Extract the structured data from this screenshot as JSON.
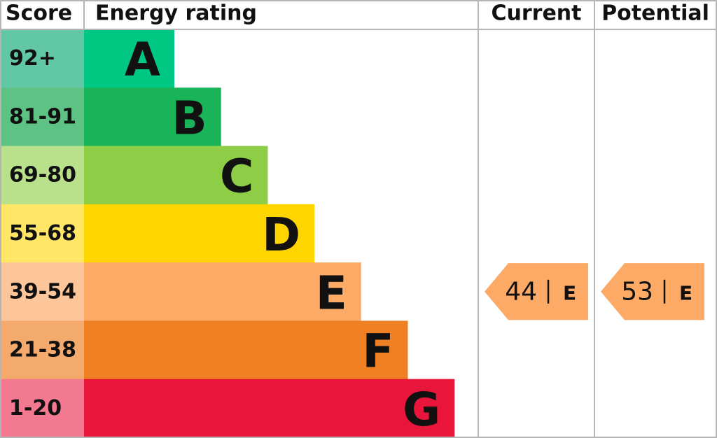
{
  "header": {
    "score": "Score",
    "rating": "Energy rating",
    "current": "Current",
    "potential": "Potential"
  },
  "bands": [
    {
      "score": "92+",
      "letter": "A"
    },
    {
      "score": "81-91",
      "letter": "B"
    },
    {
      "score": "69-80",
      "letter": "C"
    },
    {
      "score": "55-68",
      "letter": "D"
    },
    {
      "score": "39-54",
      "letter": "E"
    },
    {
      "score": "21-38",
      "letter": "F"
    },
    {
      "score": "1-20",
      "letter": "G"
    }
  ],
  "current": {
    "value": 44,
    "band": "E"
  },
  "potential": {
    "value": 53,
    "band": "E"
  }
}
